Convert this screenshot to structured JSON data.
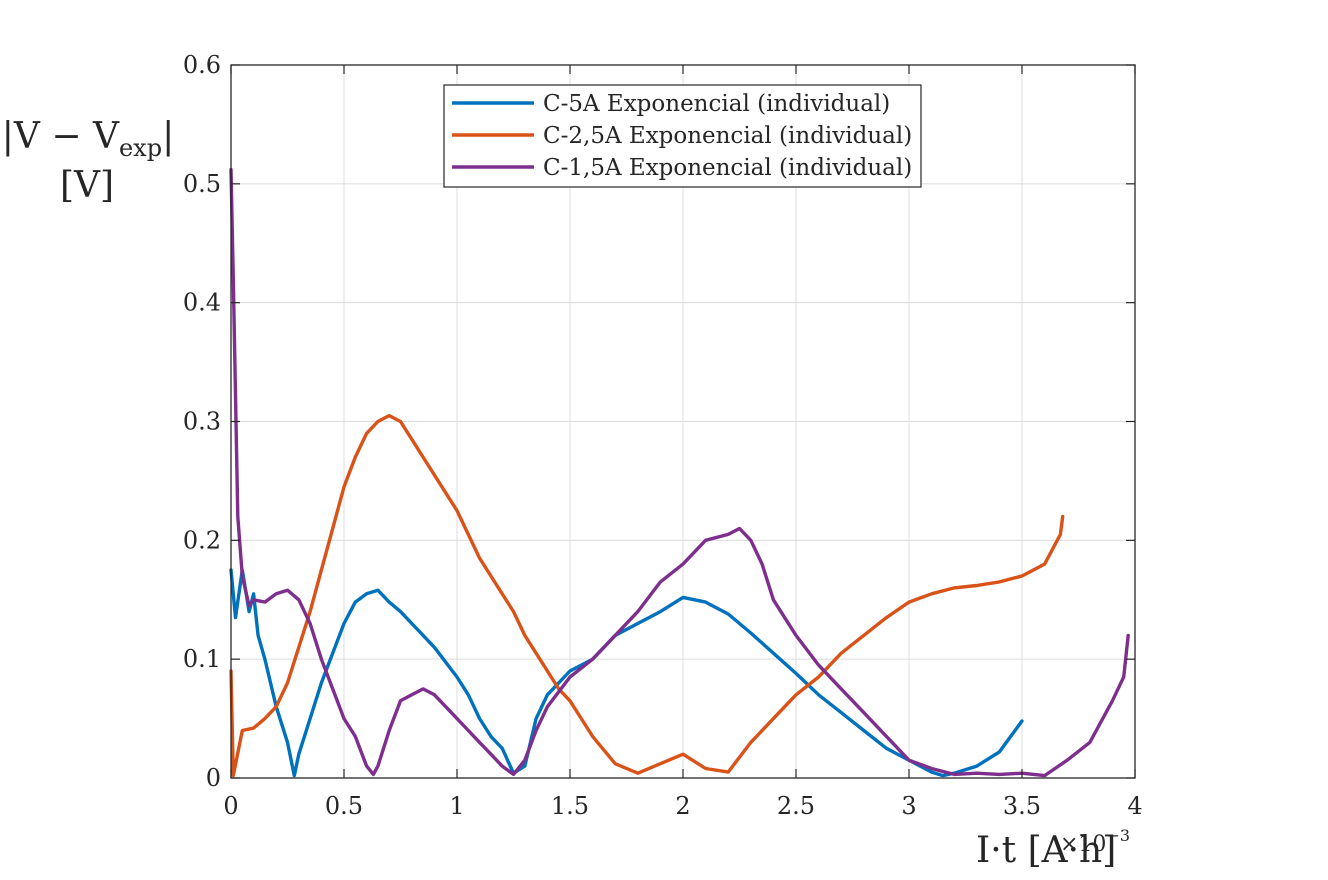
{
  "chart_data": {
    "type": "line",
    "title": "",
    "ylabel_line1": "|V − V",
    "ylabel_sub": "exp",
    "ylabel_line1_end": "|",
    "ylabel_line2": "[V]",
    "xlabel": "I·t [A·h]",
    "x_exponent_label": "×10",
    "x_exponent": "−3",
    "xlim": [
      0,
      4
    ],
    "ylim": [
      0,
      0.6
    ],
    "xticks": [
      0,
      0.5,
      1,
      1.5,
      2,
      2.5,
      3,
      3.5,
      4
    ],
    "xtick_labels": [
      "0",
      "0.5",
      "1",
      "1.5",
      "2",
      "2.5",
      "3",
      "3.5",
      "4"
    ],
    "yticks": [
      0,
      0.1,
      0.2,
      0.3,
      0.4,
      0.5,
      0.6
    ],
    "ytick_labels": [
      "0",
      "0.1",
      "0.2",
      "0.3",
      "0.4",
      "0.5",
      "0.6"
    ],
    "grid": true,
    "legend_position": "top-center",
    "series": [
      {
        "name": "C-5A Exponencial (individual)",
        "color": "#0072BD",
        "x": [
          0,
          0.02,
          0.05,
          0.08,
          0.1,
          0.12,
          0.15,
          0.2,
          0.25,
          0.28,
          0.3,
          0.35,
          0.4,
          0.45,
          0.5,
          0.55,
          0.6,
          0.65,
          0.7,
          0.75,
          0.8,
          0.9,
          1.0,
          1.05,
          1.1,
          1.15,
          1.2,
          1.25,
          1.3,
          1.35,
          1.4,
          1.5,
          1.6,
          1.7,
          1.8,
          1.9,
          2.0,
          2.1,
          2.2,
          2.3,
          2.4,
          2.5,
          2.6,
          2.7,
          2.8,
          2.9,
          3.0,
          3.1,
          3.15,
          3.2,
          3.3,
          3.4,
          3.45,
          3.5
        ],
        "y": [
          0.175,
          0.135,
          0.175,
          0.14,
          0.155,
          0.12,
          0.1,
          0.06,
          0.03,
          0.002,
          0.02,
          0.05,
          0.08,
          0.105,
          0.13,
          0.148,
          0.155,
          0.158,
          0.148,
          0.14,
          0.13,
          0.11,
          0.085,
          0.07,
          0.05,
          0.035,
          0.025,
          0.004,
          0.01,
          0.05,
          0.07,
          0.09,
          0.1,
          0.12,
          0.13,
          0.14,
          0.152,
          0.148,
          0.138,
          0.122,
          0.105,
          0.088,
          0.07,
          0.055,
          0.04,
          0.025,
          0.015,
          0.005,
          0.002,
          0.004,
          0.01,
          0.022,
          0.035,
          0.048
        ]
      },
      {
        "name": "C-2,5A Exponencial (individual)",
        "color": "#D95319",
        "x": [
          0,
          0.01,
          0.05,
          0.1,
          0.15,
          0.2,
          0.25,
          0.3,
          0.35,
          0.4,
          0.45,
          0.5,
          0.55,
          0.6,
          0.65,
          0.7,
          0.75,
          0.8,
          0.85,
          0.9,
          0.95,
          1.0,
          1.05,
          1.1,
          1.15,
          1.2,
          1.25,
          1.3,
          1.35,
          1.4,
          1.45,
          1.5,
          1.55,
          1.6,
          1.7,
          1.8,
          1.9,
          2.0,
          2.1,
          2.2,
          2.3,
          2.4,
          2.5,
          2.6,
          2.7,
          2.8,
          2.9,
          3.0,
          3.1,
          3.2,
          3.3,
          3.4,
          3.5,
          3.6,
          3.67,
          3.68
        ],
        "y": [
          0.09,
          0.002,
          0.04,
          0.042,
          0.05,
          0.06,
          0.08,
          0.11,
          0.14,
          0.175,
          0.21,
          0.245,
          0.27,
          0.29,
          0.3,
          0.305,
          0.3,
          0.285,
          0.27,
          0.255,
          0.24,
          0.225,
          0.205,
          0.185,
          0.17,
          0.155,
          0.14,
          0.12,
          0.105,
          0.09,
          0.075,
          0.065,
          0.05,
          0.035,
          0.012,
          0.004,
          0.012,
          0.02,
          0.008,
          0.005,
          0.03,
          0.05,
          0.07,
          0.085,
          0.105,
          0.12,
          0.135,
          0.148,
          0.155,
          0.16,
          0.162,
          0.165,
          0.17,
          0.18,
          0.205,
          0.22
        ]
      },
      {
        "name": "C-1,5A Exponencial (individual)",
        "color": "#7E2F8E",
        "x": [
          0,
          0.01,
          0.03,
          0.05,
          0.08,
          0.1,
          0.15,
          0.2,
          0.25,
          0.3,
          0.35,
          0.4,
          0.45,
          0.5,
          0.55,
          0.6,
          0.63,
          0.65,
          0.7,
          0.75,
          0.8,
          0.85,
          0.9,
          0.95,
          1.0,
          1.05,
          1.1,
          1.15,
          1.2,
          1.25,
          1.3,
          1.35,
          1.4,
          1.5,
          1.6,
          1.7,
          1.8,
          1.9,
          2.0,
          2.1,
          2.2,
          2.25,
          2.3,
          2.35,
          2.4,
          2.5,
          2.6,
          2.7,
          2.8,
          2.9,
          3.0,
          3.1,
          3.2,
          3.3,
          3.4,
          3.5,
          3.6,
          3.7,
          3.8,
          3.9,
          3.95,
          3.97
        ],
        "y": [
          0.512,
          0.42,
          0.22,
          0.17,
          0.145,
          0.15,
          0.148,
          0.155,
          0.158,
          0.15,
          0.13,
          0.1,
          0.075,
          0.05,
          0.035,
          0.01,
          0.003,
          0.01,
          0.04,
          0.065,
          0.07,
          0.075,
          0.07,
          0.06,
          0.05,
          0.04,
          0.03,
          0.02,
          0.01,
          0.003,
          0.015,
          0.04,
          0.06,
          0.085,
          0.1,
          0.12,
          0.14,
          0.165,
          0.18,
          0.2,
          0.205,
          0.21,
          0.2,
          0.18,
          0.15,
          0.12,
          0.095,
          0.075,
          0.055,
          0.035,
          0.015,
          0.008,
          0.003,
          0.004,
          0.003,
          0.004,
          0.002,
          0.015,
          0.03,
          0.065,
          0.085,
          0.12
        ]
      }
    ]
  }
}
